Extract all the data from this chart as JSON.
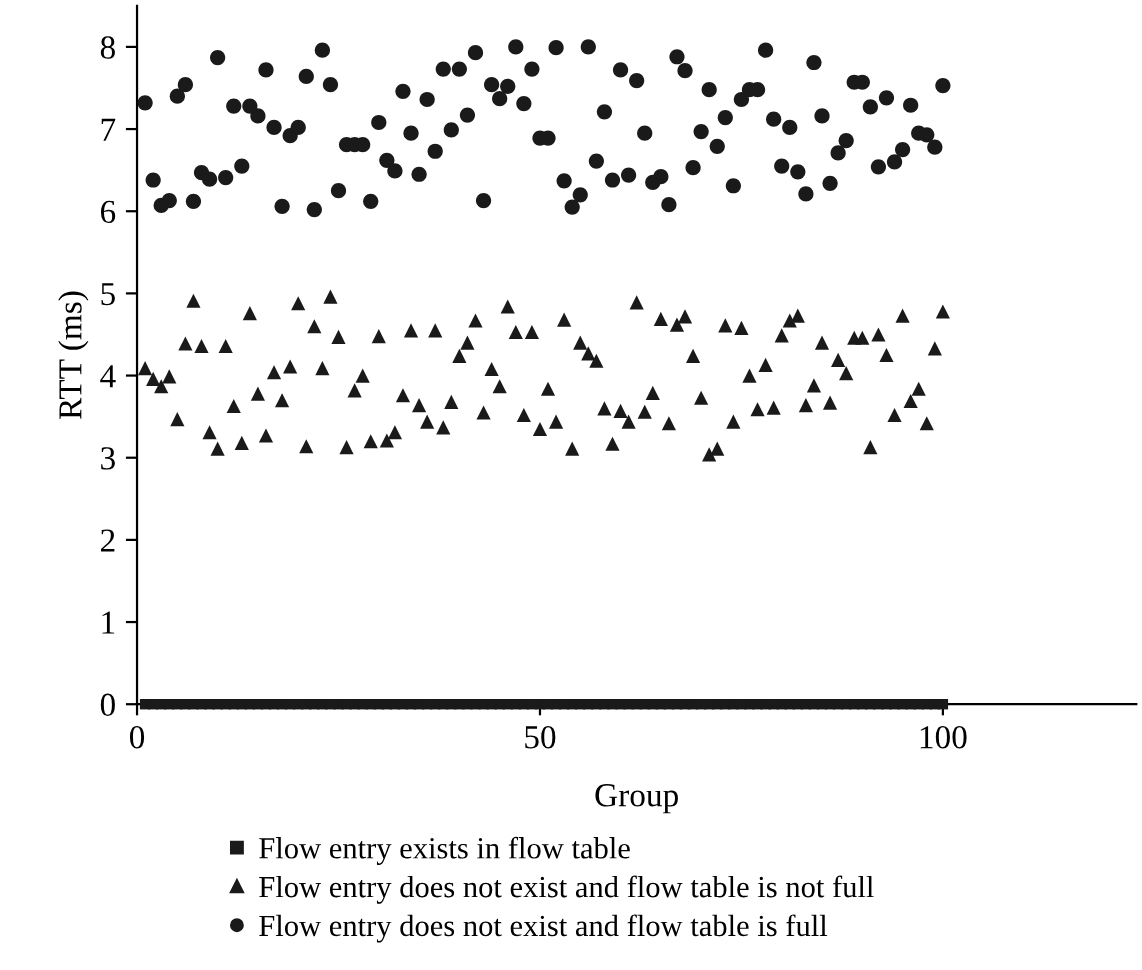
{
  "chart_data": {
    "type": "scatter",
    "xlabel": "Group",
    "ylabel": "RTT (ms)",
    "x": [
      1,
      2,
      3,
      4,
      5,
      6,
      7,
      8,
      9,
      10,
      11,
      12,
      13,
      14,
      15,
      16,
      17,
      18,
      19,
      20,
      21,
      22,
      23,
      24,
      25,
      26,
      27,
      28,
      29,
      30,
      31,
      32,
      33,
      34,
      35,
      36,
      37,
      38,
      39,
      40,
      41,
      42,
      43,
      44,
      45,
      46,
      47,
      48,
      49,
      50,
      51,
      52,
      53,
      54,
      55,
      56,
      57,
      58,
      59,
      60,
      61,
      62,
      63,
      64,
      65,
      66,
      67,
      68,
      69,
      70,
      71,
      72,
      73,
      74,
      75,
      76,
      77,
      78,
      79,
      80,
      81,
      82,
      83,
      84,
      85,
      86,
      87,
      88,
      89,
      90,
      91,
      92,
      93,
      94,
      95,
      96,
      97,
      98,
      99,
      100
    ],
    "xlim": [
      0,
      124
    ],
    "xticks": [
      0,
      50,
      100
    ],
    "ylim": [
      0,
      8.5
    ],
    "yticks": [
      0,
      1,
      2,
      3,
      4,
      5,
      6,
      7,
      8
    ],
    "grid": false,
    "legend": "bottom",
    "series": [
      {
        "name": "Flow entry exists in flow table",
        "color": "#1a1a1a",
        "marker": "square",
        "values": [
          0,
          0,
          0,
          0,
          0,
          0,
          0,
          0,
          0,
          0,
          0,
          0,
          0,
          0,
          0,
          0,
          0,
          0,
          0,
          0,
          0,
          0,
          0,
          0,
          0,
          0,
          0,
          0,
          0,
          0,
          0,
          0,
          0,
          0,
          0,
          0,
          0,
          0,
          0,
          0,
          0,
          0,
          0,
          0,
          0,
          0,
          0,
          0,
          0,
          0,
          0,
          0,
          0,
          0,
          0,
          0,
          0,
          0,
          0,
          0,
          0,
          0,
          0,
          0,
          0,
          0,
          0,
          0,
          0,
          0,
          0,
          0,
          0,
          0,
          0,
          0,
          0,
          0,
          0,
          0,
          0,
          0,
          0,
          0,
          0,
          0,
          0,
          0,
          0,
          0,
          0,
          0,
          0,
          0,
          0,
          0,
          0,
          0,
          0,
          0
        ]
      },
      {
        "name": "Flow entry does not exist and flow table is not full",
        "color": "#1a1a1a",
        "marker": "triangle",
        "values": [
          4.09,
          3.96,
          3.87,
          3.99,
          3.47,
          4.39,
          4.91,
          4.36,
          3.31,
          3.11,
          4.36,
          3.63,
          3.18,
          4.76,
          3.78,
          3.27,
          4.04,
          3.7,
          4.11,
          4.88,
          3.14,
          4.6,
          4.09,
          4.96,
          4.47,
          3.13,
          3.82,
          4.0,
          3.2,
          4.48,
          3.21,
          3.31,
          3.76,
          4.55,
          3.64,
          3.44,
          4.55,
          3.37,
          3.68,
          4.24,
          4.4,
          4.67,
          3.55,
          4.08,
          3.87,
          4.84,
          4.53,
          3.52,
          4.53,
          3.35,
          3.84,
          3.44,
          4.68,
          3.11,
          4.4,
          4.27,
          4.18,
          3.6,
          3.17,
          3.57,
          3.44,
          4.89,
          3.56,
          3.79,
          4.69,
          3.42,
          4.62,
          4.72,
          4.24,
          3.73,
          3.04,
          3.11,
          4.61,
          3.44,
          4.58,
          4.0,
          3.59,
          4.13,
          3.61,
          4.49,
          4.67,
          4.73,
          3.64,
          3.88,
          4.4,
          3.67,
          4.19,
          4.03,
          4.46,
          4.46,
          3.13,
          4.5,
          4.25,
          3.52,
          4.73,
          3.69,
          3.84,
          3.42,
          4.33,
          4.78
        ]
      },
      {
        "name": "Flow entry does not exist and flow table is full",
        "color": "#1a1a1a",
        "marker": "circle",
        "values": [
          7.32,
          6.38,
          6.07,
          6.13,
          7.4,
          7.54,
          6.12,
          6.47,
          6.39,
          7.87,
          6.41,
          7.28,
          6.55,
          7.28,
          7.16,
          7.72,
          7.02,
          6.06,
          6.92,
          7.02,
          7.64,
          6.02,
          7.96,
          7.54,
          6.25,
          6.81,
          6.81,
          6.81,
          6.12,
          7.08,
          6.62,
          6.49,
          7.46,
          6.95,
          6.45,
          7.36,
          6.73,
          7.73,
          6.99,
          7.73,
          7.17,
          7.93,
          6.13,
          7.54,
          7.37,
          7.52,
          8.0,
          7.31,
          7.73,
          6.89,
          6.89,
          7.99,
          6.37,
          6.05,
          6.2,
          8.0,
          6.61,
          7.21,
          6.38,
          7.72,
          6.44,
          7.59,
          6.95,
          6.35,
          6.42,
          6.08,
          7.88,
          7.71,
          6.53,
          6.97,
          7.48,
          6.79,
          7.14,
          6.31,
          7.36,
          7.48,
          7.48,
          7.96,
          7.12,
          6.55,
          7.02,
          6.48,
          6.21,
          7.81,
          7.16,
          6.34,
          6.71,
          6.86,
          7.57,
          7.57,
          7.27,
          6.54,
          7.38,
          6.6,
          6.75,
          7.29,
          6.95,
          6.93,
          6.78,
          7.53
        ]
      }
    ]
  }
}
